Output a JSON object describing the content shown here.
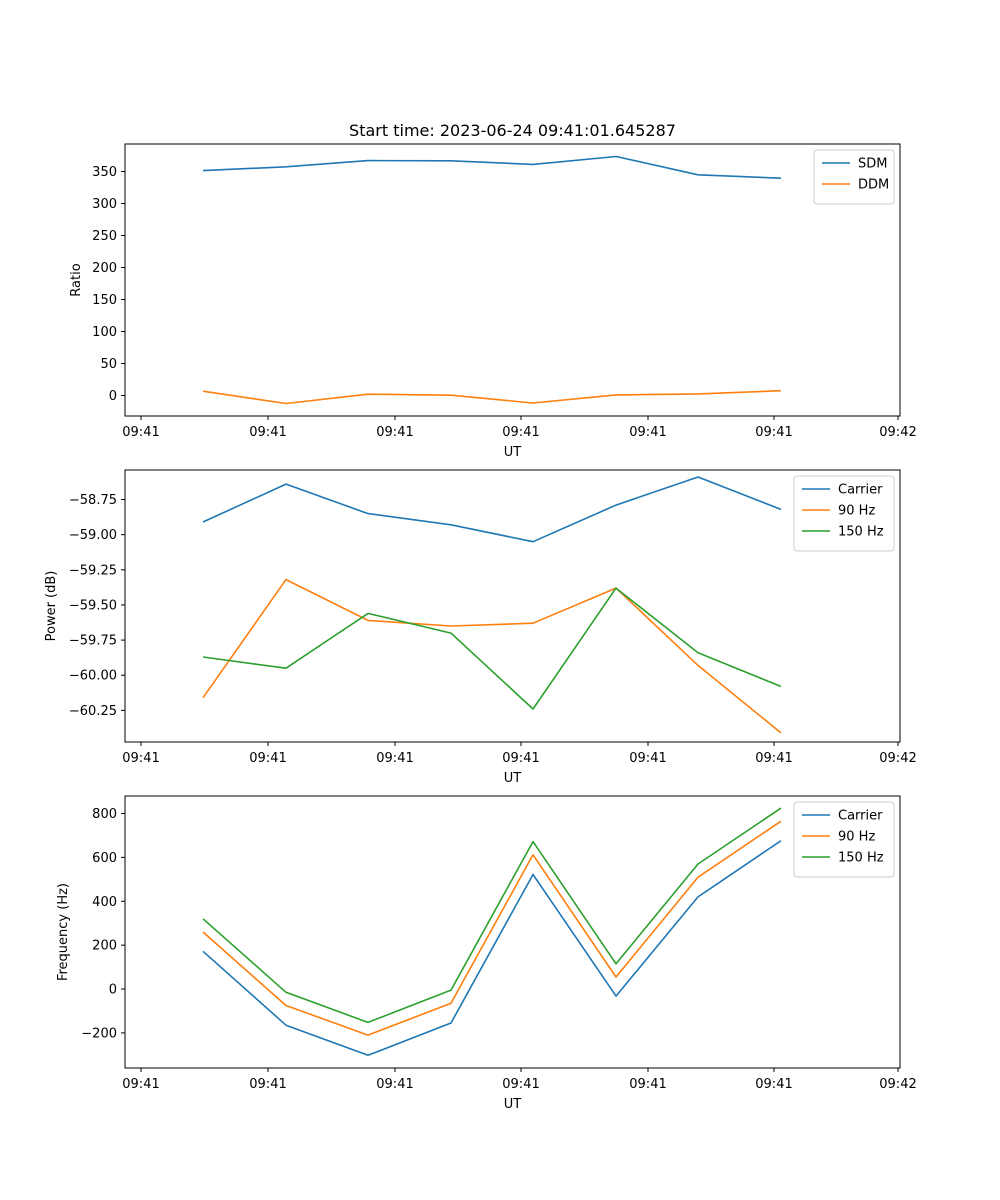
{
  "chart_data": [
    {
      "type": "line",
      "title": "Start time: 2023-06-24 09:41:01.645287",
      "xlabel": "UT",
      "ylabel": "Ratio",
      "x_tick_labels": [
        "09:41",
        "09:41",
        "09:41",
        "09:41",
        "09:41",
        "09:41",
        "09:42"
      ],
      "y_ticks": [
        0,
        50,
        100,
        150,
        200,
        250,
        300,
        350
      ],
      "ylim": [
        -32,
        393
      ],
      "grid": false,
      "legend_position": "upper right",
      "series": [
        {
          "name": "SDM",
          "color": "#1f77b4",
          "values": [
            351.5,
            357.4,
            367.1,
            366.8,
            361.2,
            373.5,
            344.9,
            339.6
          ]
        },
        {
          "name": "DDM",
          "color": "#ff7f0e",
          "values": [
            6.7,
            -12.4,
            2.1,
            0.5,
            -11.7,
            0.9,
            2.5,
            7.5
          ]
        }
      ]
    },
    {
      "type": "line",
      "title": "",
      "xlabel": "UT",
      "ylabel": "Power (dB)",
      "x_tick_labels": [
        "09:41",
        "09:41",
        "09:41",
        "09:41",
        "09:41",
        "09:41",
        "09:42"
      ],
      "y_ticks": [
        -60.25,
        -60.0,
        -59.75,
        -59.5,
        -59.25,
        -59.0,
        -58.75
      ],
      "y_tick_labels": [
        "−60.25",
        "−60.00",
        "−59.75",
        "−59.50",
        "−59.25",
        "−59.00",
        "−58.75"
      ],
      "ylim": [
        -60.475,
        -58.54
      ],
      "grid": false,
      "legend_position": "upper right",
      "series": [
        {
          "name": "Carrier",
          "color": "#1f77b4",
          "values": [
            -58.91,
            -58.64,
            -58.85,
            -58.93,
            -59.05,
            -58.79,
            -58.59,
            -58.82
          ]
        },
        {
          "name": "90 Hz",
          "color": "#ff7f0e",
          "values": [
            -60.16,
            -59.32,
            -59.61,
            -59.65,
            -59.63,
            -59.38,
            -59.93,
            -60.41
          ]
        },
        {
          "name": "150 Hz",
          "color": "#2ca02c",
          "values": [
            -59.87,
            -59.95,
            -59.56,
            -59.7,
            -60.24,
            -59.38,
            -59.84,
            -60.08
          ]
        }
      ]
    },
    {
      "type": "line",
      "title": "",
      "xlabel": "UT",
      "ylabel": "Frequency (Hz)",
      "x_tick_labels": [
        "09:41",
        "09:41",
        "09:41",
        "09:41",
        "09:41",
        "09:41",
        "09:42"
      ],
      "y_ticks": [
        -200,
        0,
        200,
        400,
        600,
        800
      ],
      "y_tick_labels": [
        "−200",
        "0",
        "200",
        "400",
        "600",
        "800"
      ],
      "ylim": [
        -360,
        880
      ],
      "grid": false,
      "legend_position": "upper right",
      "series": [
        {
          "name": "Carrier",
          "color": "#1f77b4",
          "values": [
            172,
            -165,
            -302,
            -155,
            522,
            -32,
            420,
            676
          ]
        },
        {
          "name": "90 Hz",
          "color": "#ff7f0e",
          "values": [
            260,
            -75,
            -210,
            -65,
            612,
            55,
            510,
            765
          ]
        },
        {
          "name": "150 Hz",
          "color": "#2ca02c",
          "values": [
            320,
            -15,
            -152,
            -5,
            672,
            115,
            570,
            825
          ]
        }
      ]
    }
  ]
}
